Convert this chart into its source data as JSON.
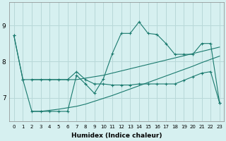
{
  "xlabel": "Humidex (Indice chaleur)",
  "background_color": "#d6f0f0",
  "grid_color": "#b8d8d8",
  "line_color": "#1a7a6e",
  "xlim": [
    -0.5,
    23.5
  ],
  "ylim": [
    6.35,
    9.65
  ],
  "yticks": [
    7,
    8,
    9
  ],
  "xticks": [
    0,
    1,
    2,
    3,
    4,
    5,
    6,
    7,
    8,
    9,
    10,
    11,
    12,
    13,
    14,
    15,
    16,
    17,
    18,
    19,
    20,
    21,
    22,
    23
  ],
  "s2_x": [
    0,
    1,
    2,
    3,
    4,
    5,
    6,
    7,
    8,
    9,
    10,
    11,
    12,
    13,
    14,
    15,
    16,
    17,
    18,
    19,
    20,
    21,
    22,
    23
  ],
  "s2_y": [
    8.72,
    7.5,
    6.62,
    6.62,
    6.62,
    6.62,
    6.62,
    7.62,
    7.38,
    7.12,
    7.52,
    8.22,
    8.78,
    8.78,
    9.1,
    8.78,
    8.75,
    8.5,
    8.2,
    8.2,
    8.2,
    8.5,
    8.5,
    6.85
  ],
  "s1_x": [
    0,
    1,
    2,
    3,
    4,
    5,
    6,
    7,
    8,
    9,
    10,
    11,
    12,
    13,
    14,
    15,
    16,
    17,
    18,
    19,
    20,
    21,
    22,
    23
  ],
  "s1_y": [
    8.72,
    7.5,
    7.5,
    7.5,
    7.5,
    7.5,
    7.5,
    7.72,
    7.5,
    7.38,
    7.38,
    7.35,
    7.35,
    7.35,
    7.38,
    7.38,
    7.38,
    7.38,
    7.38,
    7.48,
    7.58,
    7.68,
    7.72,
    6.85
  ],
  "s3_x": [
    2,
    3,
    4,
    5,
    6,
    7,
    8,
    9,
    10,
    11,
    12,
    13,
    14,
    15,
    16,
    17,
    18,
    19,
    20,
    21,
    22,
    23
  ],
  "s3_y": [
    6.62,
    6.62,
    6.65,
    6.68,
    6.72,
    6.76,
    6.82,
    6.9,
    6.98,
    7.06,
    7.15,
    7.24,
    7.33,
    7.42,
    7.51,
    7.6,
    7.69,
    7.78,
    7.87,
    7.97,
    8.06,
    8.15
  ],
  "s4_x": [
    2,
    3,
    4,
    5,
    6,
    7,
    8,
    9,
    10,
    11,
    12,
    13,
    14,
    15,
    16,
    17,
    18,
    19,
    20,
    21,
    22,
    23
  ],
  "s4_y": [
    7.5,
    7.5,
    7.5,
    7.5,
    7.5,
    7.5,
    7.54,
    7.58,
    7.62,
    7.68,
    7.74,
    7.8,
    7.86,
    7.92,
    7.98,
    8.04,
    8.1,
    8.16,
    8.22,
    8.28,
    8.34,
    8.4
  ]
}
